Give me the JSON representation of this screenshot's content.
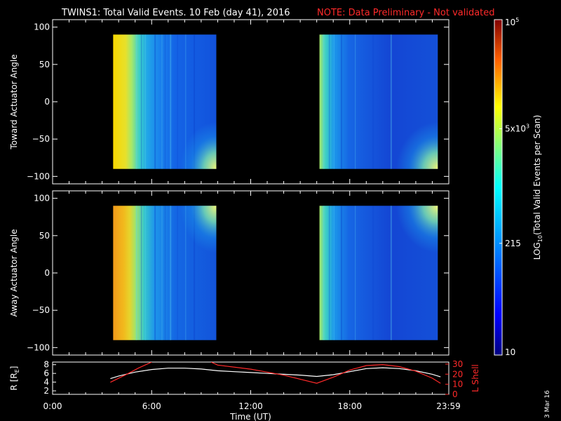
{
  "title": {
    "text": "TWINS1: Total Valid Events. 10 Feb (day  41), 2016",
    "note": "NOTE: Data Preliminary - Not validated"
  },
  "date_stamp": "3 Mar 16",
  "colors": {
    "background": "#000000",
    "text": "#ffffff",
    "note": "#ff2a2a",
    "r_line": "#ffffff",
    "lshell_line": "#ff2a2a"
  },
  "chart_data": [
    {
      "type": "heatmap",
      "panel": "toward",
      "ylabel": "Toward Actuator Angle",
      "ylim": [
        -110,
        110
      ],
      "yticks": [
        "100",
        "50",
        "0",
        "−50",
        "−100"
      ],
      "ytick_values": [
        100,
        50,
        0,
        -50,
        -100
      ],
      "xlim_hours": [
        0,
        24
      ],
      "data_blocks": [
        {
          "start": "3:40",
          "end": "9:55",
          "angle_min": -90,
          "angle_max": 90
        },
        {
          "start": "16:10",
          "end": "23:20",
          "angle_min": -90,
          "angle_max": 90
        }
      ]
    },
    {
      "type": "heatmap",
      "panel": "away",
      "ylabel": "Away Actuator Angle",
      "ylim": [
        -110,
        110
      ],
      "yticks": [
        "100",
        "50",
        "0",
        "−50",
        "−100"
      ],
      "ytick_values": [
        100,
        50,
        0,
        -50,
        -100
      ],
      "xlim_hours": [
        0,
        24
      ],
      "data_blocks": [
        {
          "start": "3:40",
          "end": "9:55",
          "angle_min": -90,
          "angle_max": 90
        },
        {
          "start": "16:10",
          "end": "23:20",
          "angle_min": -90,
          "angle_max": 90
        }
      ]
    },
    {
      "type": "line",
      "panel": "orbit",
      "xlabel": "Time (UT)",
      "xtick_labels": [
        "0:00",
        "6:00",
        "12:00",
        "18:00",
        "23:59"
      ],
      "xtick_hours": [
        0,
        6,
        12,
        18,
        23.98
      ],
      "y_left": {
        "label": "R [R",
        "label_sub": "E",
        "label_end": "]",
        "ticks": [
          "8",
          "6",
          "4",
          "2"
        ],
        "tick_values": [
          8,
          6,
          4,
          2
        ],
        "ylim": [
          1.2,
          8.6
        ]
      },
      "y_right": {
        "label": "L Shell",
        "ticks": [
          "30",
          "20",
          "10",
          "0"
        ],
        "tick_values": [
          30,
          20,
          10,
          0
        ],
        "ylim": [
          0,
          32
        ]
      },
      "series": [
        {
          "axis": "left",
          "x": [
            3.5,
            4.0,
            5.0,
            6.0,
            7.0,
            8.0,
            9.0,
            10.0,
            11.0,
            12.0,
            13.0,
            14.0,
            15.0,
            16.0,
            17.0,
            18.0,
            19.0,
            20.0,
            21.0,
            22.0,
            23.0,
            23.5
          ],
          "values": [
            4.8,
            5.4,
            6.3,
            6.9,
            7.2,
            7.2,
            7.0,
            6.6,
            6.4,
            6.2,
            6.0,
            5.8,
            5.6,
            5.3,
            5.7,
            6.4,
            7.1,
            7.3,
            7.1,
            6.6,
            5.8,
            5.2
          ]
        },
        {
          "axis": "right",
          "x": [
            3.5,
            4.5,
            5.2,
            6.0
          ],
          "values": [
            12,
            20,
            26,
            32
          ]
        },
        {
          "axis": "right",
          "x": [
            9.6,
            10.0,
            12.0,
            14.0,
            16.0,
            17.0,
            18.0,
            19.0,
            20.0,
            21.0,
            22.0,
            23.0,
            23.5
          ],
          "values": [
            32,
            29,
            25,
            19,
            11,
            17,
            24,
            28.5,
            29.5,
            27.5,
            23,
            16,
            11
          ]
        }
      ]
    }
  ],
  "colorbar": {
    "title_pre": "LOG",
    "title_sub": "10",
    "title_post": "(Total Valid  Events per Scan)",
    "scale": "log",
    "range": [
      10,
      100000
    ],
    "ticks": [
      {
        "value": 100000,
        "label": "10",
        "sup": "5"
      },
      {
        "value": 5000,
        "label": "5x10",
        "sup": "3"
      },
      {
        "value": 215,
        "label": "215",
        "sup": ""
      },
      {
        "value": 10,
        "label": "10",
        "sup": ""
      }
    ]
  }
}
